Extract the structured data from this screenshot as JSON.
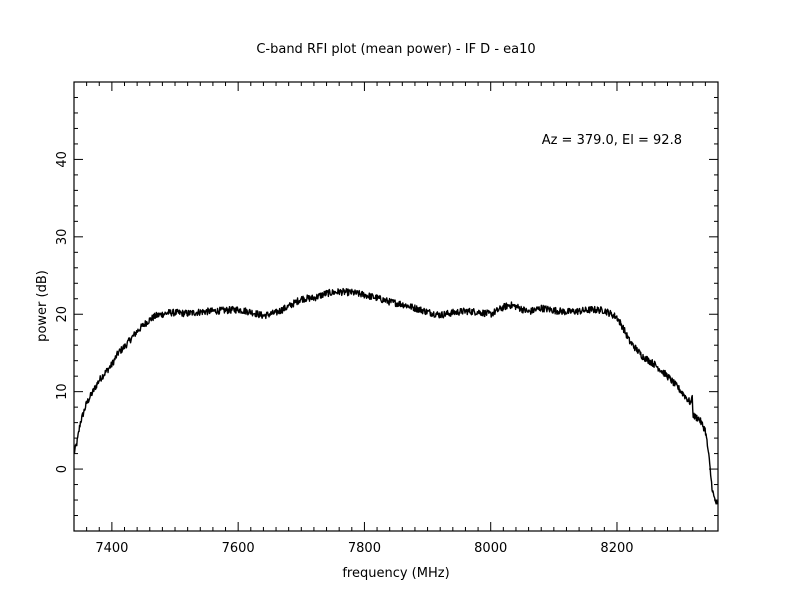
{
  "chart_data": {
    "type": "line",
    "title": "C-band RFI plot (mean power) - IF D - ea10",
    "xlabel": "frequency (MHz)",
    "ylabel": "power (dB)",
    "annotation": "Az = 379.0, El = 92.8",
    "xlim": [
      7340,
      8360
    ],
    "ylim": [
      -8,
      50
    ],
    "x_ticks": [
      7400,
      7600,
      7800,
      8000,
      8200
    ],
    "y_ticks": [
      0,
      10,
      20,
      30,
      40
    ],
    "grid": false,
    "line_color": "#000000",
    "series": [
      {
        "x": [
          7340,
          7345,
          7350,
          7360,
          7370,
          7380,
          7390,
          7400,
          7410,
          7420,
          7430,
          7440,
          7450,
          7460,
          7470,
          7480,
          7490,
          7500,
          7520,
          7540,
          7560,
          7580,
          7600,
          7620,
          7640,
          7660,
          7680,
          7700,
          7720,
          7740,
          7760,
          7780,
          7800,
          7820,
          7840,
          7860,
          7880,
          7900,
          7920,
          7940,
          7960,
          7980,
          8000,
          8020,
          8030,
          8040,
          8060,
          8080,
          8100,
          8120,
          8140,
          8160,
          8180,
          8200,
          8210,
          8220,
          8240,
          8260,
          8280,
          8300,
          8315,
          8318,
          8319,
          8320,
          8322,
          8330,
          8340,
          8345,
          8350,
          8353,
          8356,
          8360
        ],
        "y": [
          2,
          3.5,
          6,
          8.5,
          10,
          11.5,
          12.5,
          13.5,
          15,
          15.8,
          16.8,
          17.8,
          18.6,
          19.3,
          19.8,
          20,
          20.2,
          20.2,
          20.1,
          20.3,
          20.4,
          20.5,
          20.6,
          20.3,
          19.8,
          20.2,
          21,
          22,
          22.1,
          22.7,
          22.9,
          22.8,
          22.5,
          22.1,
          21.6,
          21.3,
          20.8,
          20.3,
          19.9,
          20.2,
          20.4,
          20.3,
          20,
          20.9,
          21.2,
          21,
          20.3,
          20.8,
          20.5,
          20.3,
          20.4,
          20.6,
          20.5,
          19.6,
          18.2,
          16.5,
          14.6,
          13.5,
          12,
          10.2,
          8.7,
          8.5,
          10.5,
          7.2,
          6.8,
          6.5,
          5,
          2,
          -2,
          -3.5,
          -4.2,
          -4.8
        ]
      }
    ]
  }
}
